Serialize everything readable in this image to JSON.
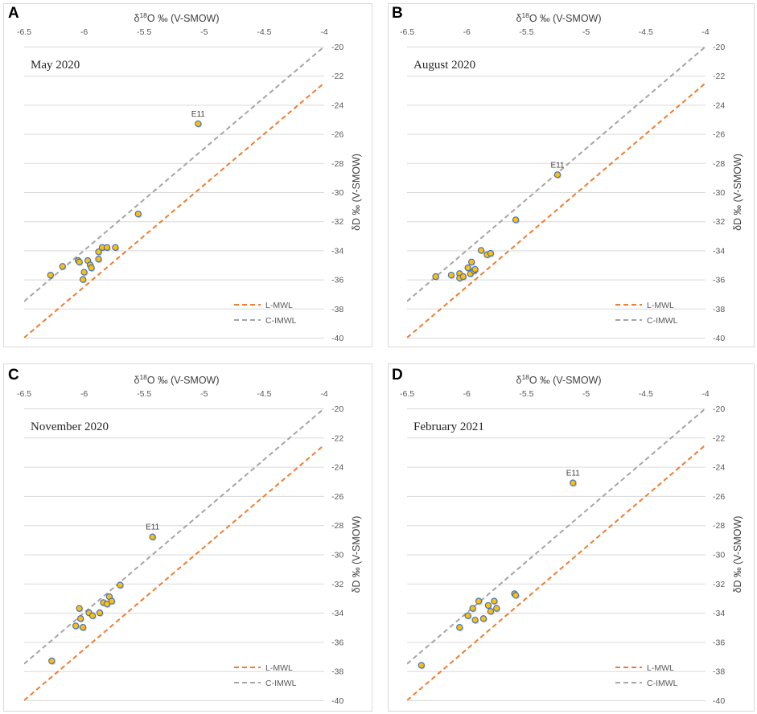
{
  "figure": {
    "colors": {
      "lmwl": "#ED7D31",
      "cimwl": "#A5A5A5",
      "point_fill": "#FFC000",
      "point_stroke": "#4472C4",
      "frame": "#D9D9D9",
      "grid": "#D9D9D9"
    }
  },
  "chart_data": [
    {
      "type": "scatter",
      "panel": "A",
      "title": "May 2020",
      "xlabel": "δ18O ‰ (V-SMOW)",
      "ylabel": "δD ‰ (V-SMOW)",
      "xlim": [
        -6.5,
        -4
      ],
      "ylim": [
        -40,
        -20
      ],
      "xticks": [
        "-6.5",
        "-6",
        "-5.5",
        "-5",
        "-4.5",
        "-4"
      ],
      "yticks": [
        "-20",
        "-22",
        "-24",
        "-26",
        "-28",
        "-30",
        "-32",
        "-34",
        "-36",
        "-38",
        "-40"
      ],
      "grid": "horizontal",
      "legend": {
        "position": "bottom-right",
        "entries": [
          "L-MWL",
          "C-IMWL"
        ]
      },
      "lines": [
        {
          "name": "L-MWL",
          "slope": 7.0,
          "intercept": 5.5
        },
        {
          "name": "C-IMWL",
          "slope": 7.0,
          "intercept": 8.0
        }
      ],
      "points": [
        {
          "x": -6.28,
          "y": -35.7
        },
        {
          "x": -6.18,
          "y": -35.1
        },
        {
          "x": -6.05,
          "y": -34.7
        },
        {
          "x": -6.04,
          "y": -34.8
        },
        {
          "x": -6.01,
          "y": -36.0
        },
        {
          "x": -6.0,
          "y": -35.5
        },
        {
          "x": -5.97,
          "y": -34.7
        },
        {
          "x": -5.95,
          "y": -35.0
        },
        {
          "x": -5.94,
          "y": -35.2
        },
        {
          "x": -5.88,
          "y": -34.1
        },
        {
          "x": -5.88,
          "y": -34.6
        },
        {
          "x": -5.85,
          "y": -33.8
        },
        {
          "x": -5.81,
          "y": -33.8
        },
        {
          "x": -5.74,
          "y": -33.8
        },
        {
          "x": -5.55,
          "y": -31.5
        },
        {
          "x": -5.05,
          "y": -25.3,
          "label": "E11"
        }
      ]
    },
    {
      "type": "scatter",
      "panel": "B",
      "title": "August 2020",
      "xlabel": "δ18O ‰ (V-SMOW)",
      "ylabel": "δD ‰ (V-SMOW)",
      "xlim": [
        -6.5,
        -4
      ],
      "ylim": [
        -40,
        -20
      ],
      "xticks": [
        "-6.5",
        "-6",
        "-5.5",
        "-5",
        "-4.5",
        "-4"
      ],
      "yticks": [
        "-20",
        "-22",
        "-24",
        "-26",
        "-28",
        "-30",
        "-32",
        "-34",
        "-36",
        "-38",
        "-40"
      ],
      "grid": "horizontal",
      "legend": {
        "position": "bottom-right",
        "entries": [
          "L-MWL",
          "C-IMWL"
        ]
      },
      "lines": [
        {
          "name": "L-MWL",
          "slope": 7.0,
          "intercept": 5.5
        },
        {
          "name": "C-IMWL",
          "slope": 7.0,
          "intercept": 8.0
        }
      ],
      "points": [
        {
          "x": -6.26,
          "y": -35.8
        },
        {
          "x": -6.13,
          "y": -35.7
        },
        {
          "x": -6.06,
          "y": -35.6
        },
        {
          "x": -6.06,
          "y": -35.9
        },
        {
          "x": -6.03,
          "y": -35.8
        },
        {
          "x": -5.99,
          "y": -35.2
        },
        {
          "x": -5.97,
          "y": -35.6
        },
        {
          "x": -5.96,
          "y": -34.8
        },
        {
          "x": -5.94,
          "y": -35.4
        },
        {
          "x": -5.93,
          "y": -35.3
        },
        {
          "x": -5.88,
          "y": -34.0
        },
        {
          "x": -5.83,
          "y": -34.3
        },
        {
          "x": -5.8,
          "y": -34.2
        },
        {
          "x": -5.59,
          "y": -31.9
        },
        {
          "x": -5.24,
          "y": -28.8,
          "label": "E11"
        }
      ]
    },
    {
      "type": "scatter",
      "panel": "C",
      "title": "November 2020",
      "xlabel": "δ18O ‰ (V-SMOW)",
      "ylabel": "δD ‰ (V-SMOW)",
      "xlim": [
        -6.5,
        -4
      ],
      "ylim": [
        -40,
        -20
      ],
      "xticks": [
        "-6.5",
        "-6",
        "-5.5",
        "-5",
        "-4.5",
        "-4"
      ],
      "yticks": [
        "-20",
        "-22",
        "-24",
        "-26",
        "-28",
        "-30",
        "-32",
        "-34",
        "-36",
        "-38",
        "-40"
      ],
      "grid": "horizontal",
      "legend": {
        "position": "bottom-right",
        "entries": [
          "L-MWL",
          "C-IMWL"
        ]
      },
      "lines": [
        {
          "name": "L-MWL",
          "slope": 7.0,
          "intercept": 5.5
        },
        {
          "name": "C-IMWL",
          "slope": 7.0,
          "intercept": 8.0
        }
      ],
      "points": [
        {
          "x": -6.27,
          "y": -37.3
        },
        {
          "x": -6.07,
          "y": -34.9
        },
        {
          "x": -6.04,
          "y": -33.7
        },
        {
          "x": -6.03,
          "y": -34.4
        },
        {
          "x": -6.01,
          "y": -35.0
        },
        {
          "x": -5.96,
          "y": -34.0
        },
        {
          "x": -5.93,
          "y": -34.2
        },
        {
          "x": -5.87,
          "y": -34.0
        },
        {
          "x": -5.84,
          "y": -33.3
        },
        {
          "x": -5.81,
          "y": -33.4
        },
        {
          "x": -5.79,
          "y": -32.9
        },
        {
          "x": -5.77,
          "y": -33.2
        },
        {
          "x": -5.7,
          "y": -32.1
        },
        {
          "x": -5.43,
          "y": -28.8,
          "label": "E11"
        }
      ]
    },
    {
      "type": "scatter",
      "panel": "D",
      "title": "February 2021",
      "xlabel": "δ18O ‰ (V-SMOW)",
      "ylabel": "δD ‰ (V-SMOW)",
      "xlim": [
        -6.5,
        -4
      ],
      "ylim": [
        -40,
        -20
      ],
      "xticks": [
        "-6.5",
        "-6",
        "-5.5",
        "-5",
        "-4.5",
        "-4"
      ],
      "yticks": [
        "-20",
        "-22",
        "-24",
        "-26",
        "-28",
        "-30",
        "-32",
        "-34",
        "-36",
        "-38",
        "-40"
      ],
      "grid": "horizontal",
      "legend": {
        "position": "bottom-right",
        "entries": [
          "L-MWL",
          "C-IMWL"
        ]
      },
      "lines": [
        {
          "name": "L-MWL",
          "slope": 7.0,
          "intercept": 5.5
        },
        {
          "name": "C-IMWL",
          "slope": 7.0,
          "intercept": 8.0
        }
      ],
      "points": [
        {
          "x": -6.38,
          "y": -37.6
        },
        {
          "x": -6.06,
          "y": -35.0
        },
        {
          "x": -5.99,
          "y": -34.2
        },
        {
          "x": -5.95,
          "y": -33.7
        },
        {
          "x": -5.93,
          "y": -34.5
        },
        {
          "x": -5.9,
          "y": -33.2
        },
        {
          "x": -5.86,
          "y": -34.4
        },
        {
          "x": -5.82,
          "y": -33.5
        },
        {
          "x": -5.8,
          "y": -33.9
        },
        {
          "x": -5.77,
          "y": -33.2
        },
        {
          "x": -5.75,
          "y": -33.7
        },
        {
          "x": -5.6,
          "y": -32.7
        },
        {
          "x": -5.59,
          "y": -32.8
        },
        {
          "x": -5.11,
          "y": -25.1,
          "label": "E11"
        }
      ]
    }
  ]
}
